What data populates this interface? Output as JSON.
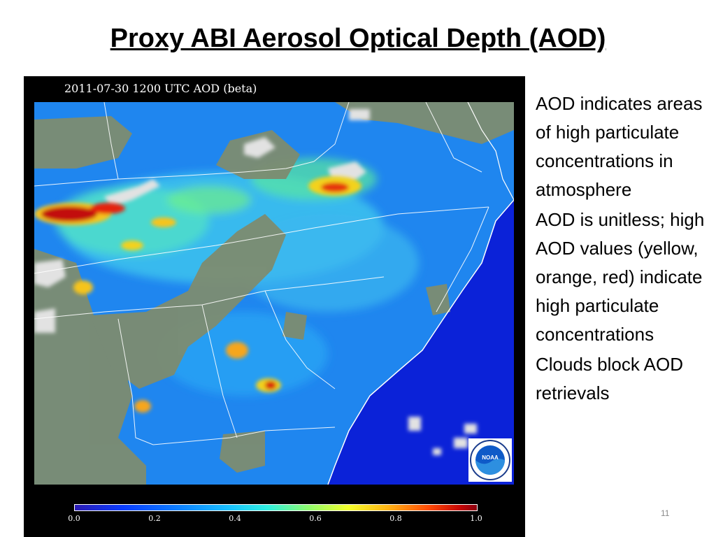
{
  "slide": {
    "title": "Proxy ABI Aerosol Optical Depth (AOD)",
    "number": "11"
  },
  "map": {
    "header": "2011-07-30 1200 UTC AOD (beta)",
    "colorbar": {
      "ticks": [
        "0.0",
        "0.2",
        "0.4",
        "0.6",
        "0.8",
        "1.0"
      ],
      "range": [
        0.0,
        1.0
      ]
    },
    "logo_text": "NOAA",
    "colors": {
      "ocean": "#0b22d8",
      "land_low_aod": "#1e78f0",
      "land_mid_aod": "#3fc0e8",
      "high_aod": "#f3d21a",
      "very_high_aod": "#c20808",
      "cloud": "#d8d8d8",
      "no_retrieval": "#7b8b6e"
    }
  },
  "bullets": [
    "AOD indicates areas of high particulate concentrations in atmosphere",
    "AOD is unitless; high AOD values (yellow, orange, red) indicate high particulate concentrations",
    "Clouds block AOD retrievals"
  ]
}
